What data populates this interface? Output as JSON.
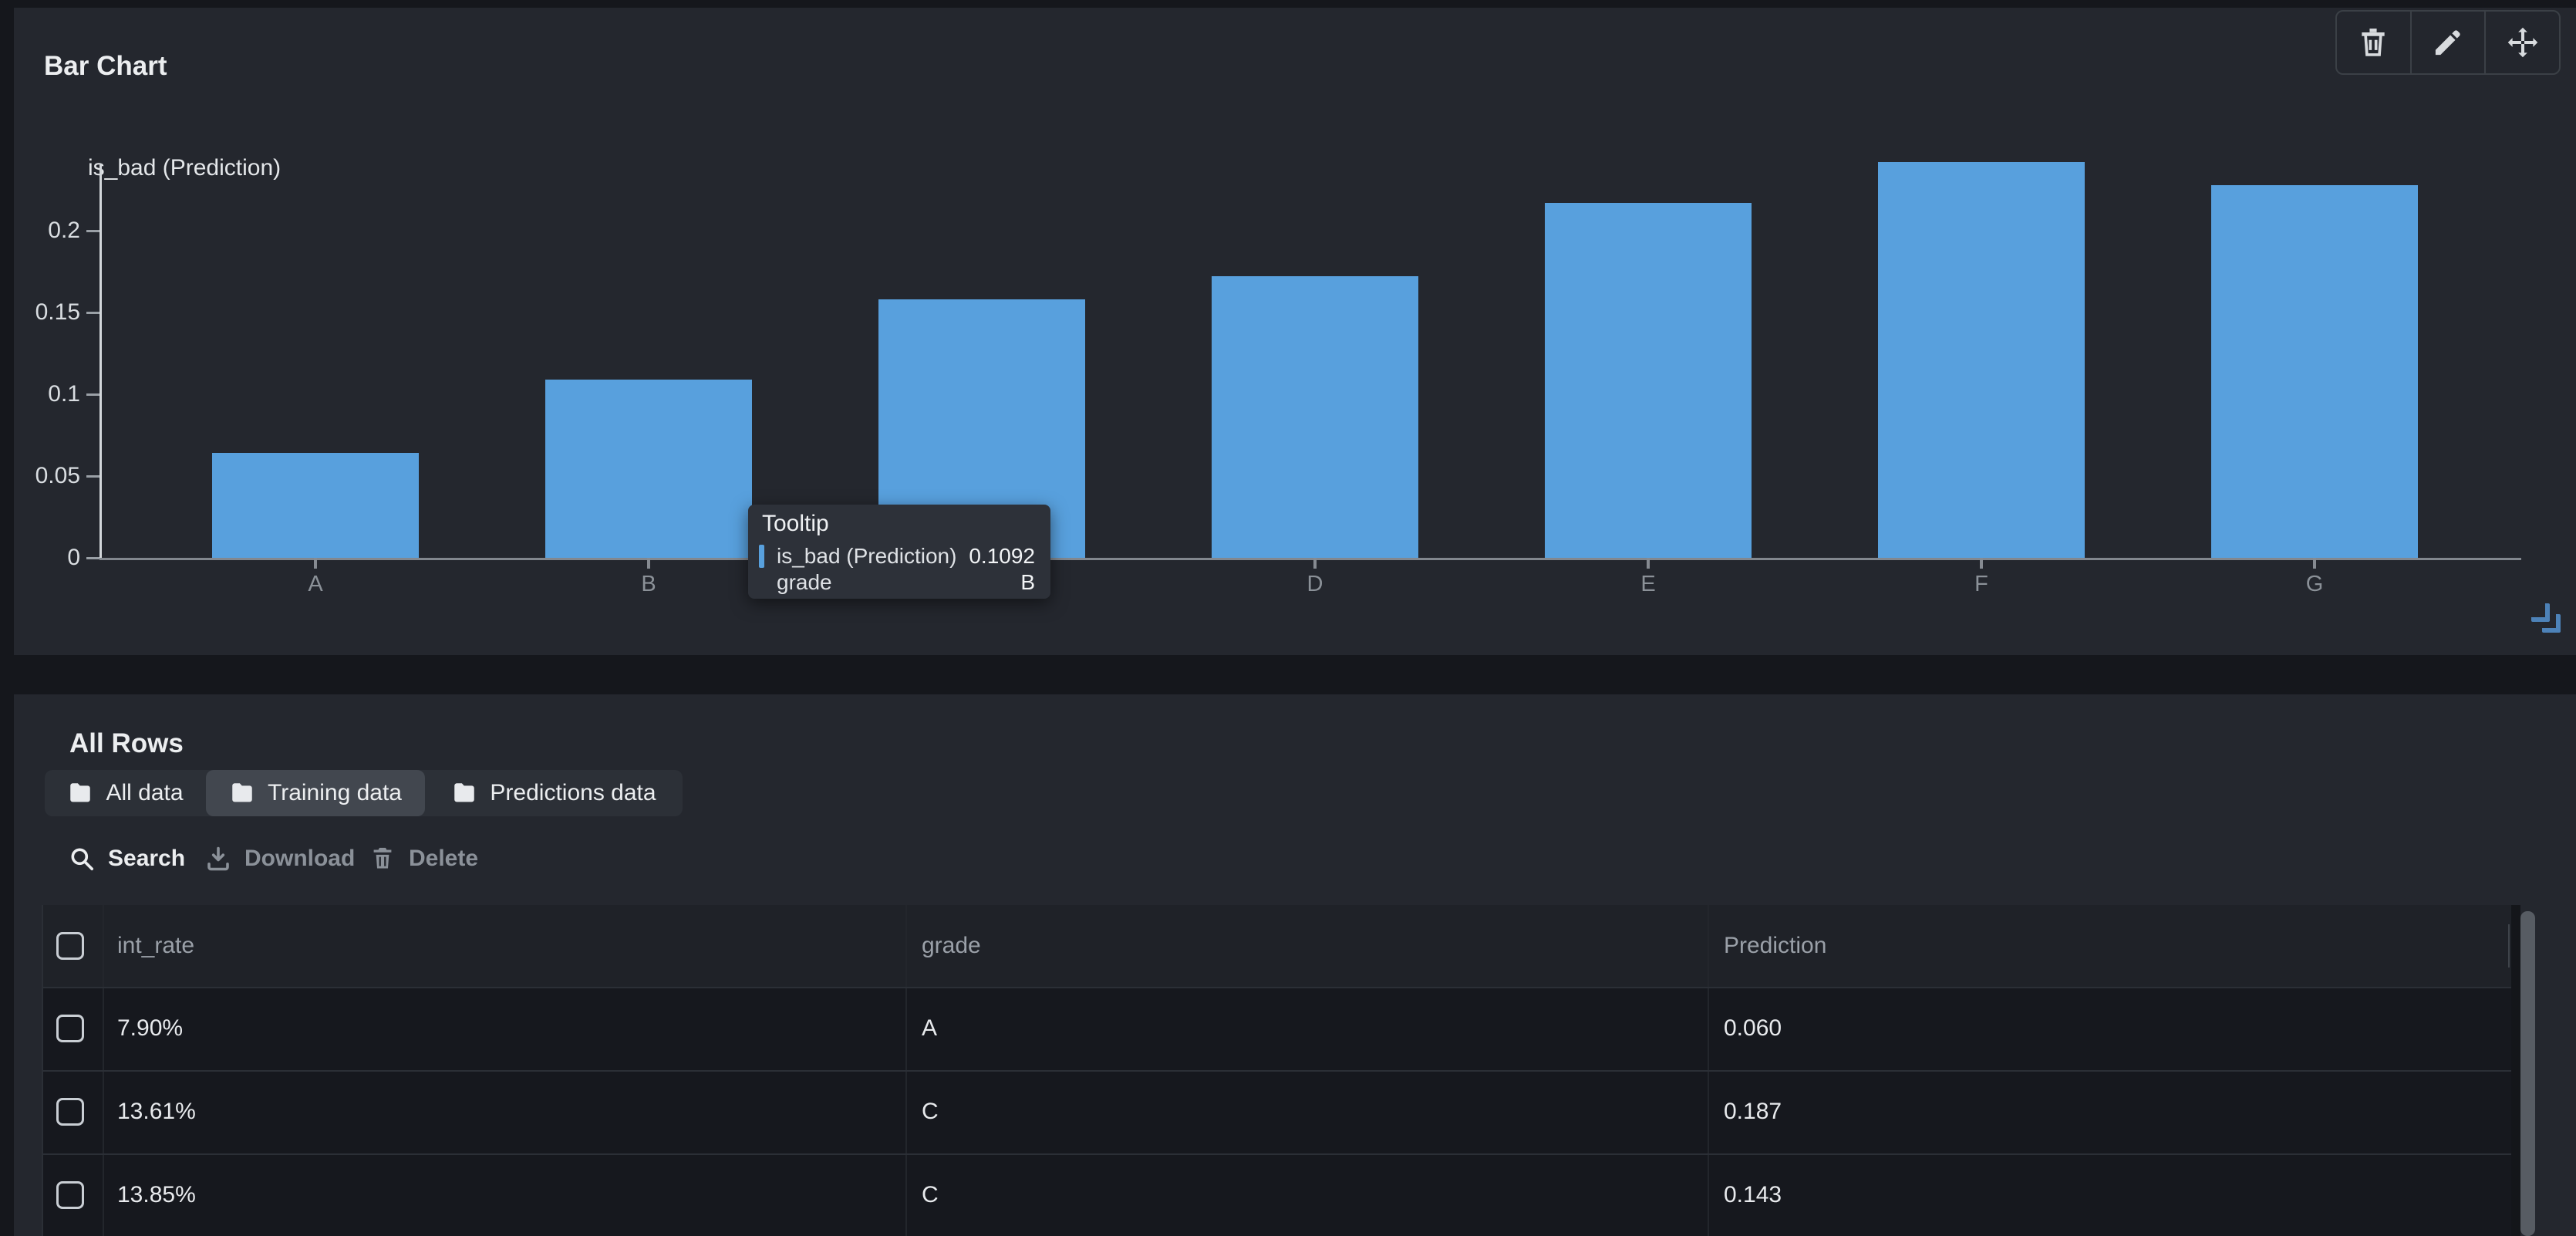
{
  "colors": {
    "accent_blue": "#58a0dd",
    "page_bg": "#15171c",
    "panel_bg": "#24272e",
    "tab_selected_bg": "#42474f",
    "tooltip_bg": "#2d3139",
    "text_primary": "#e8eaed",
    "text_secondary": "#9aa0a8",
    "resize_handle_blue": "#4d82b8"
  },
  "chart_panel": {
    "title": "Bar Chart",
    "toolbar_icons": [
      "trash-icon",
      "pencil-icon",
      "move-icon"
    ],
    "legend": {
      "label": "is_bad (Prediction)",
      "color": "#58a0dd"
    },
    "chart_data": {
      "type": "bar",
      "title": "Bar Chart",
      "series_name": "is_bad (Prediction)",
      "categories": [
        "A",
        "B",
        "C",
        "D",
        "E",
        "F",
        "G"
      ],
      "values": [
        0.064,
        0.109,
        0.158,
        0.172,
        0.217,
        0.242,
        0.228
      ],
      "xlabel": "grade",
      "ylabel": "",
      "y_ticks": [
        0,
        0.05,
        0.1,
        0.15,
        0.2
      ],
      "ylim": [
        0,
        0.245
      ],
      "grid": false,
      "legend_position": "top-left",
      "bar_color": "#58a0dd"
    },
    "tooltip": {
      "title": "Tooltip",
      "series": "is_bad (Prediction)",
      "value": "0.1092",
      "row2_label": "grade",
      "row2_value": "B"
    }
  },
  "table_panel": {
    "title": "All Rows",
    "tabs": [
      {
        "label": "All data",
        "selected": false
      },
      {
        "label": "Training data",
        "selected": true
      },
      {
        "label": "Predictions data",
        "selected": false
      }
    ],
    "toolbar": {
      "search": "Search",
      "download": "Download",
      "delete": "Delete"
    },
    "table": {
      "columns": [
        "int_rate",
        "grade",
        "Prediction"
      ],
      "rows": [
        [
          "7.90%",
          "A",
          "0.060"
        ],
        [
          "13.61%",
          "C",
          "0.187"
        ],
        [
          "13.85%",
          "C",
          "0.143"
        ]
      ]
    }
  }
}
